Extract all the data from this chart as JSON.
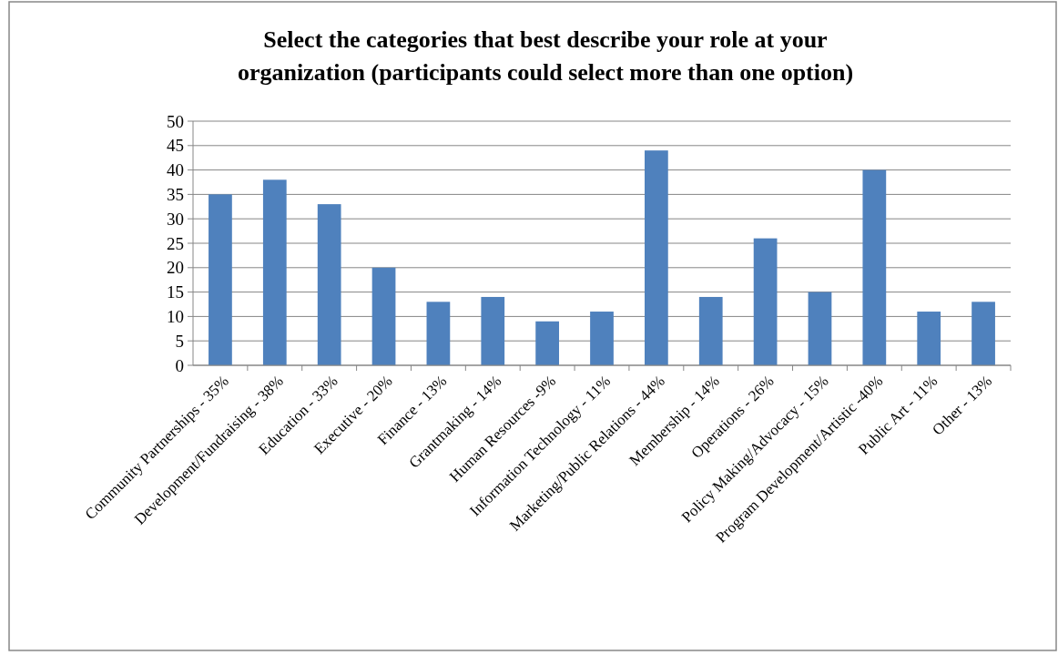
{
  "chart_data": {
    "type": "bar",
    "title": "Select the categories that best describe your role at your organization (participants could select more than one option)",
    "categories": [
      "Community Partnerships - 35%",
      "Development/Fundraising - 38%",
      "Education - 33%",
      "Executive - 20%",
      "Finance - 13%",
      "Grantmaking - 14%",
      "Human Resources -9%",
      "Information Technology - 11%",
      "Marketing/Public Relations - 44%",
      "Membership - 14%",
      "Operations - 26%",
      "Policy Making/Advocacy - 15%",
      "Program Development/Artistic -40%",
      "Public Art - 11%",
      "Other - 13%"
    ],
    "values": [
      35,
      38,
      33,
      20,
      13,
      14,
      9,
      11,
      44,
      14,
      26,
      15,
      40,
      11,
      13
    ],
    "color": "#4f81bd",
    "ylim": [
      0,
      50
    ],
    "yticks": [
      0,
      5,
      10,
      15,
      20,
      25,
      30,
      35,
      40,
      45,
      50
    ],
    "grid": "y"
  }
}
